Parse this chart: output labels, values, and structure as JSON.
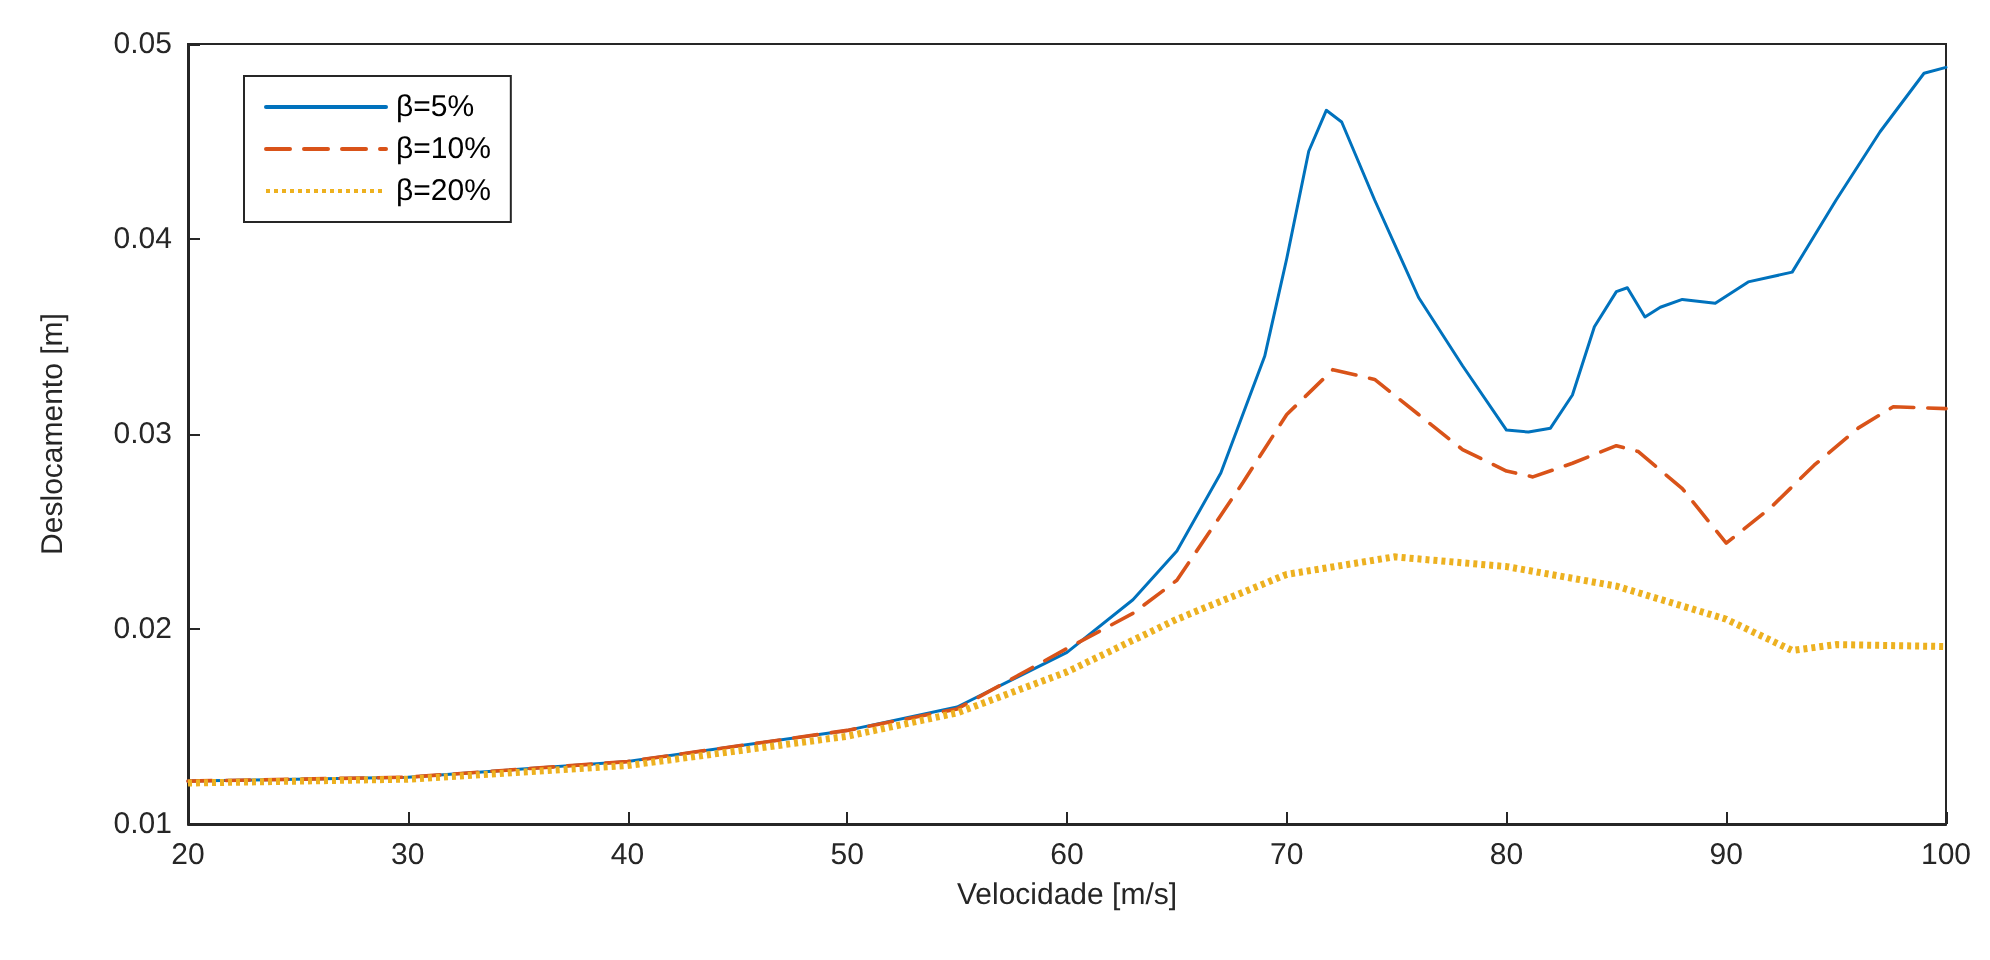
{
  "chart_data": {
    "type": "line",
    "xlabel": "Velocidade [m/s]",
    "ylabel": "Deslocamento [m]",
    "xlim": [
      20,
      100
    ],
    "xticks": [
      20,
      30,
      40,
      50,
      60,
      70,
      80,
      90,
      100
    ],
    "ylim": [
      0.01,
      0.05
    ],
    "yticks": [
      0.01,
      0.02,
      0.03,
      0.04,
      0.05
    ],
    "grid": false,
    "legend": "top left",
    "marker": "none",
    "series": [
      {
        "name": "β=5%",
        "color": "#0072bd",
        "line_style": "solid",
        "x": [
          20,
          30,
          40,
          50,
          55,
          60,
          63,
          65,
          67,
          69,
          70,
          71,
          71.8,
          72.5,
          74,
          76,
          78,
          80,
          81,
          82,
          83,
          84,
          85,
          85.5,
          86.3,
          87,
          88,
          89.5,
          91,
          93,
          95,
          97,
          99,
          100
        ],
        "values": [
          0.0122,
          0.0124,
          0.0132,
          0.0148,
          0.016,
          0.0188,
          0.0215,
          0.024,
          0.028,
          0.034,
          0.039,
          0.0445,
          0.0466,
          0.046,
          0.042,
          0.037,
          0.0335,
          0.0302,
          0.0301,
          0.0303,
          0.032,
          0.0355,
          0.0373,
          0.0375,
          0.036,
          0.0365,
          0.0369,
          0.0367,
          0.0378,
          0.0383,
          0.042,
          0.0455,
          0.0485,
          0.0488
        ]
      },
      {
        "name": "β=10%",
        "color": "#d95319",
        "line_style": "dashed",
        "x": [
          20,
          30,
          40,
          50,
          55,
          60,
          63,
          65,
          68,
          70,
          72.1,
          74,
          76,
          78,
          80,
          81.2,
          83,
          85,
          86,
          88,
          90,
          92,
          94,
          96,
          97.6,
          100
        ],
        "values": [
          0.0122,
          0.0124,
          0.0132,
          0.0148,
          0.0159,
          0.019,
          0.0208,
          0.0225,
          0.0275,
          0.031,
          0.0333,
          0.0328,
          0.031,
          0.0292,
          0.0281,
          0.0278,
          0.0285,
          0.0294,
          0.0291,
          0.0272,
          0.0244,
          0.0262,
          0.0284,
          0.0303,
          0.0314,
          0.0313
        ]
      },
      {
        "name": "β=20%",
        "color": "#edb120",
        "line_style": "dotted",
        "x": [
          20,
          30,
          40,
          50,
          55,
          60,
          65,
          70,
          74.9,
          80,
          85,
          90,
          93,
          95,
          100
        ],
        "values": [
          0.0121,
          0.0123,
          0.013,
          0.0145,
          0.0157,
          0.0178,
          0.0205,
          0.0228,
          0.0237,
          0.0232,
          0.0222,
          0.0205,
          0.0189,
          0.0192,
          0.0191
        ]
      }
    ]
  }
}
